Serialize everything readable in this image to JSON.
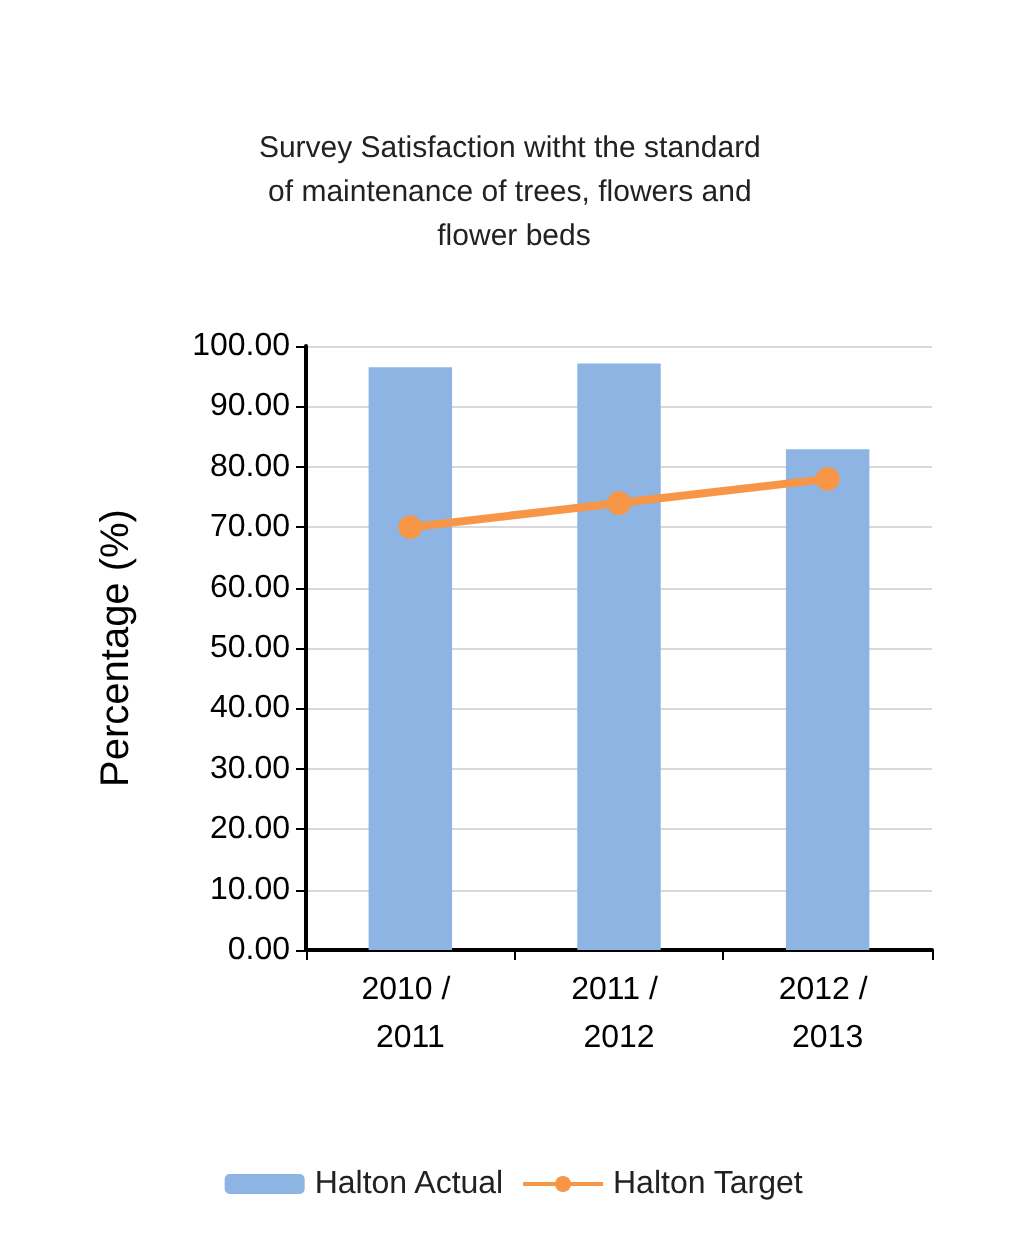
{
  "chart_data": {
    "type": "bar",
    "title": "Survey Satisfaction witht the standard of maintenance of trees, flowers and flower beds",
    "ylabel": "Percentage (%)",
    "categories": [
      "2010 / 2011",
      "2011 / 2012",
      "2012 / 2013"
    ],
    "series": [
      {
        "name": "Halton Actual",
        "color": "#8eb4e3",
        "values": [
          96.5,
          97.1,
          82.9
        ]
      },
      {
        "name": "Halton Target",
        "type": "line",
        "color": "#f79646",
        "marker": "circle",
        "values": [
          70,
          74,
          78
        ]
      }
    ],
    "ylim": [
      0,
      100
    ],
    "yticks": [
      {
        "value": 0,
        "label": "0.00"
      },
      {
        "value": 10,
        "label": "10.00"
      },
      {
        "value": 20,
        "label": "20.00"
      },
      {
        "value": 30,
        "label": "30.00"
      },
      {
        "value": 40,
        "label": "40.00"
      },
      {
        "value": 50,
        "label": "50.00"
      },
      {
        "value": 60,
        "label": "60.00"
      },
      {
        "value": 70,
        "label": "70.00"
      },
      {
        "value": 80,
        "label": "80.00"
      },
      {
        "value": 90,
        "label": "90.00"
      },
      {
        "value": 100,
        "label": "100.00"
      }
    ],
    "grid": "y",
    "legend": "bottom"
  }
}
